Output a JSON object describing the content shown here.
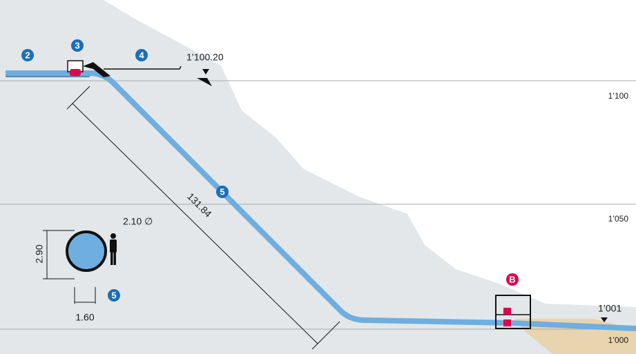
{
  "markers": [
    "2",
    "3",
    "4",
    "5",
    "5",
    "B"
  ],
  "elevations": {
    "intake": "1’100.20",
    "outlet": "1’001"
  },
  "levels": [
    "1’100",
    "1’050",
    "1’000"
  ],
  "dimensions": {
    "length": "131.84",
    "height": "2.90",
    "diameter": "2.10 ∅",
    "width": "1.60"
  }
}
